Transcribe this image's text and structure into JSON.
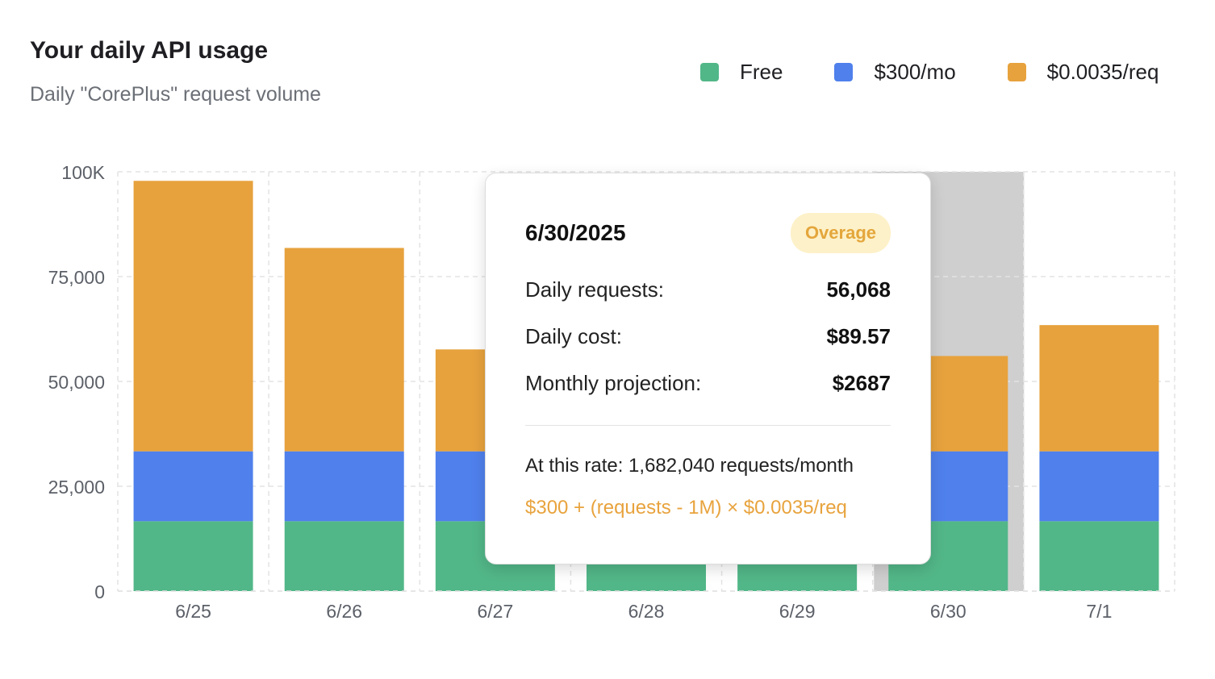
{
  "header": {
    "title": "Your daily API usage",
    "subtitle": "Daily \"CorePlus\" request volume"
  },
  "legend": [
    {
      "label": "Free",
      "color": "#52b788"
    },
    {
      "label": "$300/mo",
      "color": "#4f80ec"
    },
    {
      "label": "$0.0035/req",
      "color": "#e7a23d"
    }
  ],
  "chart_data": {
    "type": "bar",
    "stacked": true,
    "categories": [
      "6/25",
      "6/26",
      "6/27",
      "6/28",
      "6/29",
      "6/30",
      "7/1"
    ],
    "series": [
      {
        "name": "Free",
        "color": "#52b788",
        "values": [
          16667,
          16667,
          16667,
          16667,
          16667,
          16667,
          16667
        ]
      },
      {
        "name": "$300/mo",
        "color": "#4f80ec",
        "values": [
          16667,
          16667,
          16667,
          16667,
          16667,
          16667,
          16667
        ]
      },
      {
        "name": "$0.0035/req",
        "color": "#e7a23d",
        "values": [
          64500,
          48500,
          24300,
          22700,
          22700,
          22734,
          30100
        ]
      }
    ],
    "ylim": [
      0,
      100000
    ],
    "yticks": [
      0,
      25000,
      50000,
      75000,
      100000
    ],
    "ytick_labels": [
      "0",
      "25,000",
      "50,000",
      "75,000",
      "100K"
    ],
    "grid": true,
    "legend_position": "top-right",
    "highlighted_category": "6/30"
  },
  "tooltip": {
    "date": "6/30/2025",
    "badge": "Overage",
    "rows": [
      {
        "label": "Daily requests:",
        "value": "56,068"
      },
      {
        "label": "Daily cost:",
        "value": "$89.57"
      },
      {
        "label": "Monthly projection:",
        "value": "$2687"
      }
    ],
    "rate_text": "At this rate: 1,682,040 requests/month",
    "formula": "$300 + (requests - 1M) × $0.0035/req"
  }
}
